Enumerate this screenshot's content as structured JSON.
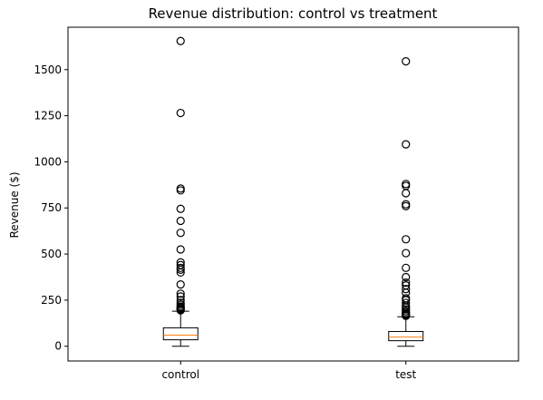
{
  "chart_data": {
    "type": "box",
    "title": "Revenue distribution: control vs treatment",
    "xlabel": "",
    "ylabel": "Revenue ($)",
    "ylim": [
      -80,
      1730
    ],
    "yticks": [
      0,
      250,
      500,
      750,
      1000,
      1250,
      1500
    ],
    "categories": [
      "control",
      "test"
    ],
    "boxes": [
      {
        "category": "control",
        "whisker_low": 0,
        "q1": 35,
        "median": 60,
        "q3": 100,
        "whisker_high": 190,
        "outliers": [
          195,
          200,
          205,
          210,
          215,
          225,
          235,
          250,
          270,
          285,
          335,
          400,
          415,
          425,
          440,
          455,
          525,
          615,
          680,
          745,
          845,
          855,
          1265,
          1655
        ]
      },
      {
        "category": "test",
        "whisker_low": 0,
        "q1": 30,
        "median": 50,
        "q3": 80,
        "whisker_high": 160,
        "outliers": [
          165,
          170,
          175,
          180,
          190,
          200,
          210,
          220,
          235,
          250,
          260,
          290,
          310,
          330,
          345,
          375,
          425,
          505,
          580,
          760,
          770,
          830,
          870,
          880,
          1095,
          1545
        ]
      }
    ],
    "colors": {
      "box": "#000000",
      "median": "#ff7f0e",
      "outlier_edge": "#000000"
    },
    "grid": false
  }
}
